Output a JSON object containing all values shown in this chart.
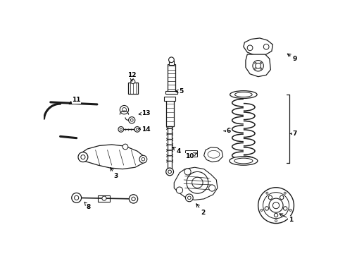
{
  "background_color": "#ffffff",
  "figsize": [
    4.9,
    3.6
  ],
  "dpi": 100,
  "labels_info": [
    [
      1,
      455,
      348,
      430,
      335
    ],
    [
      2,
      293,
      335,
      278,
      315
    ],
    [
      3,
      132,
      268,
      120,
      248
    ],
    [
      4,
      248,
      222,
      233,
      212
    ],
    [
      5,
      253,
      112,
      237,
      112
    ],
    [
      6,
      340,
      185,
      328,
      185
    ],
    [
      7,
      462,
      190,
      450,
      190
    ],
    [
      8,
      82,
      325,
      72,
      312
    ],
    [
      9,
      462,
      52,
      445,
      40
    ],
    [
      10,
      268,
      232,
      283,
      225
    ],
    [
      11,
      60,
      128,
      42,
      138
    ],
    [
      12,
      162,
      82,
      162,
      95
    ],
    [
      13,
      188,
      152,
      170,
      155
    ],
    [
      14,
      188,
      182,
      170,
      180
    ]
  ]
}
